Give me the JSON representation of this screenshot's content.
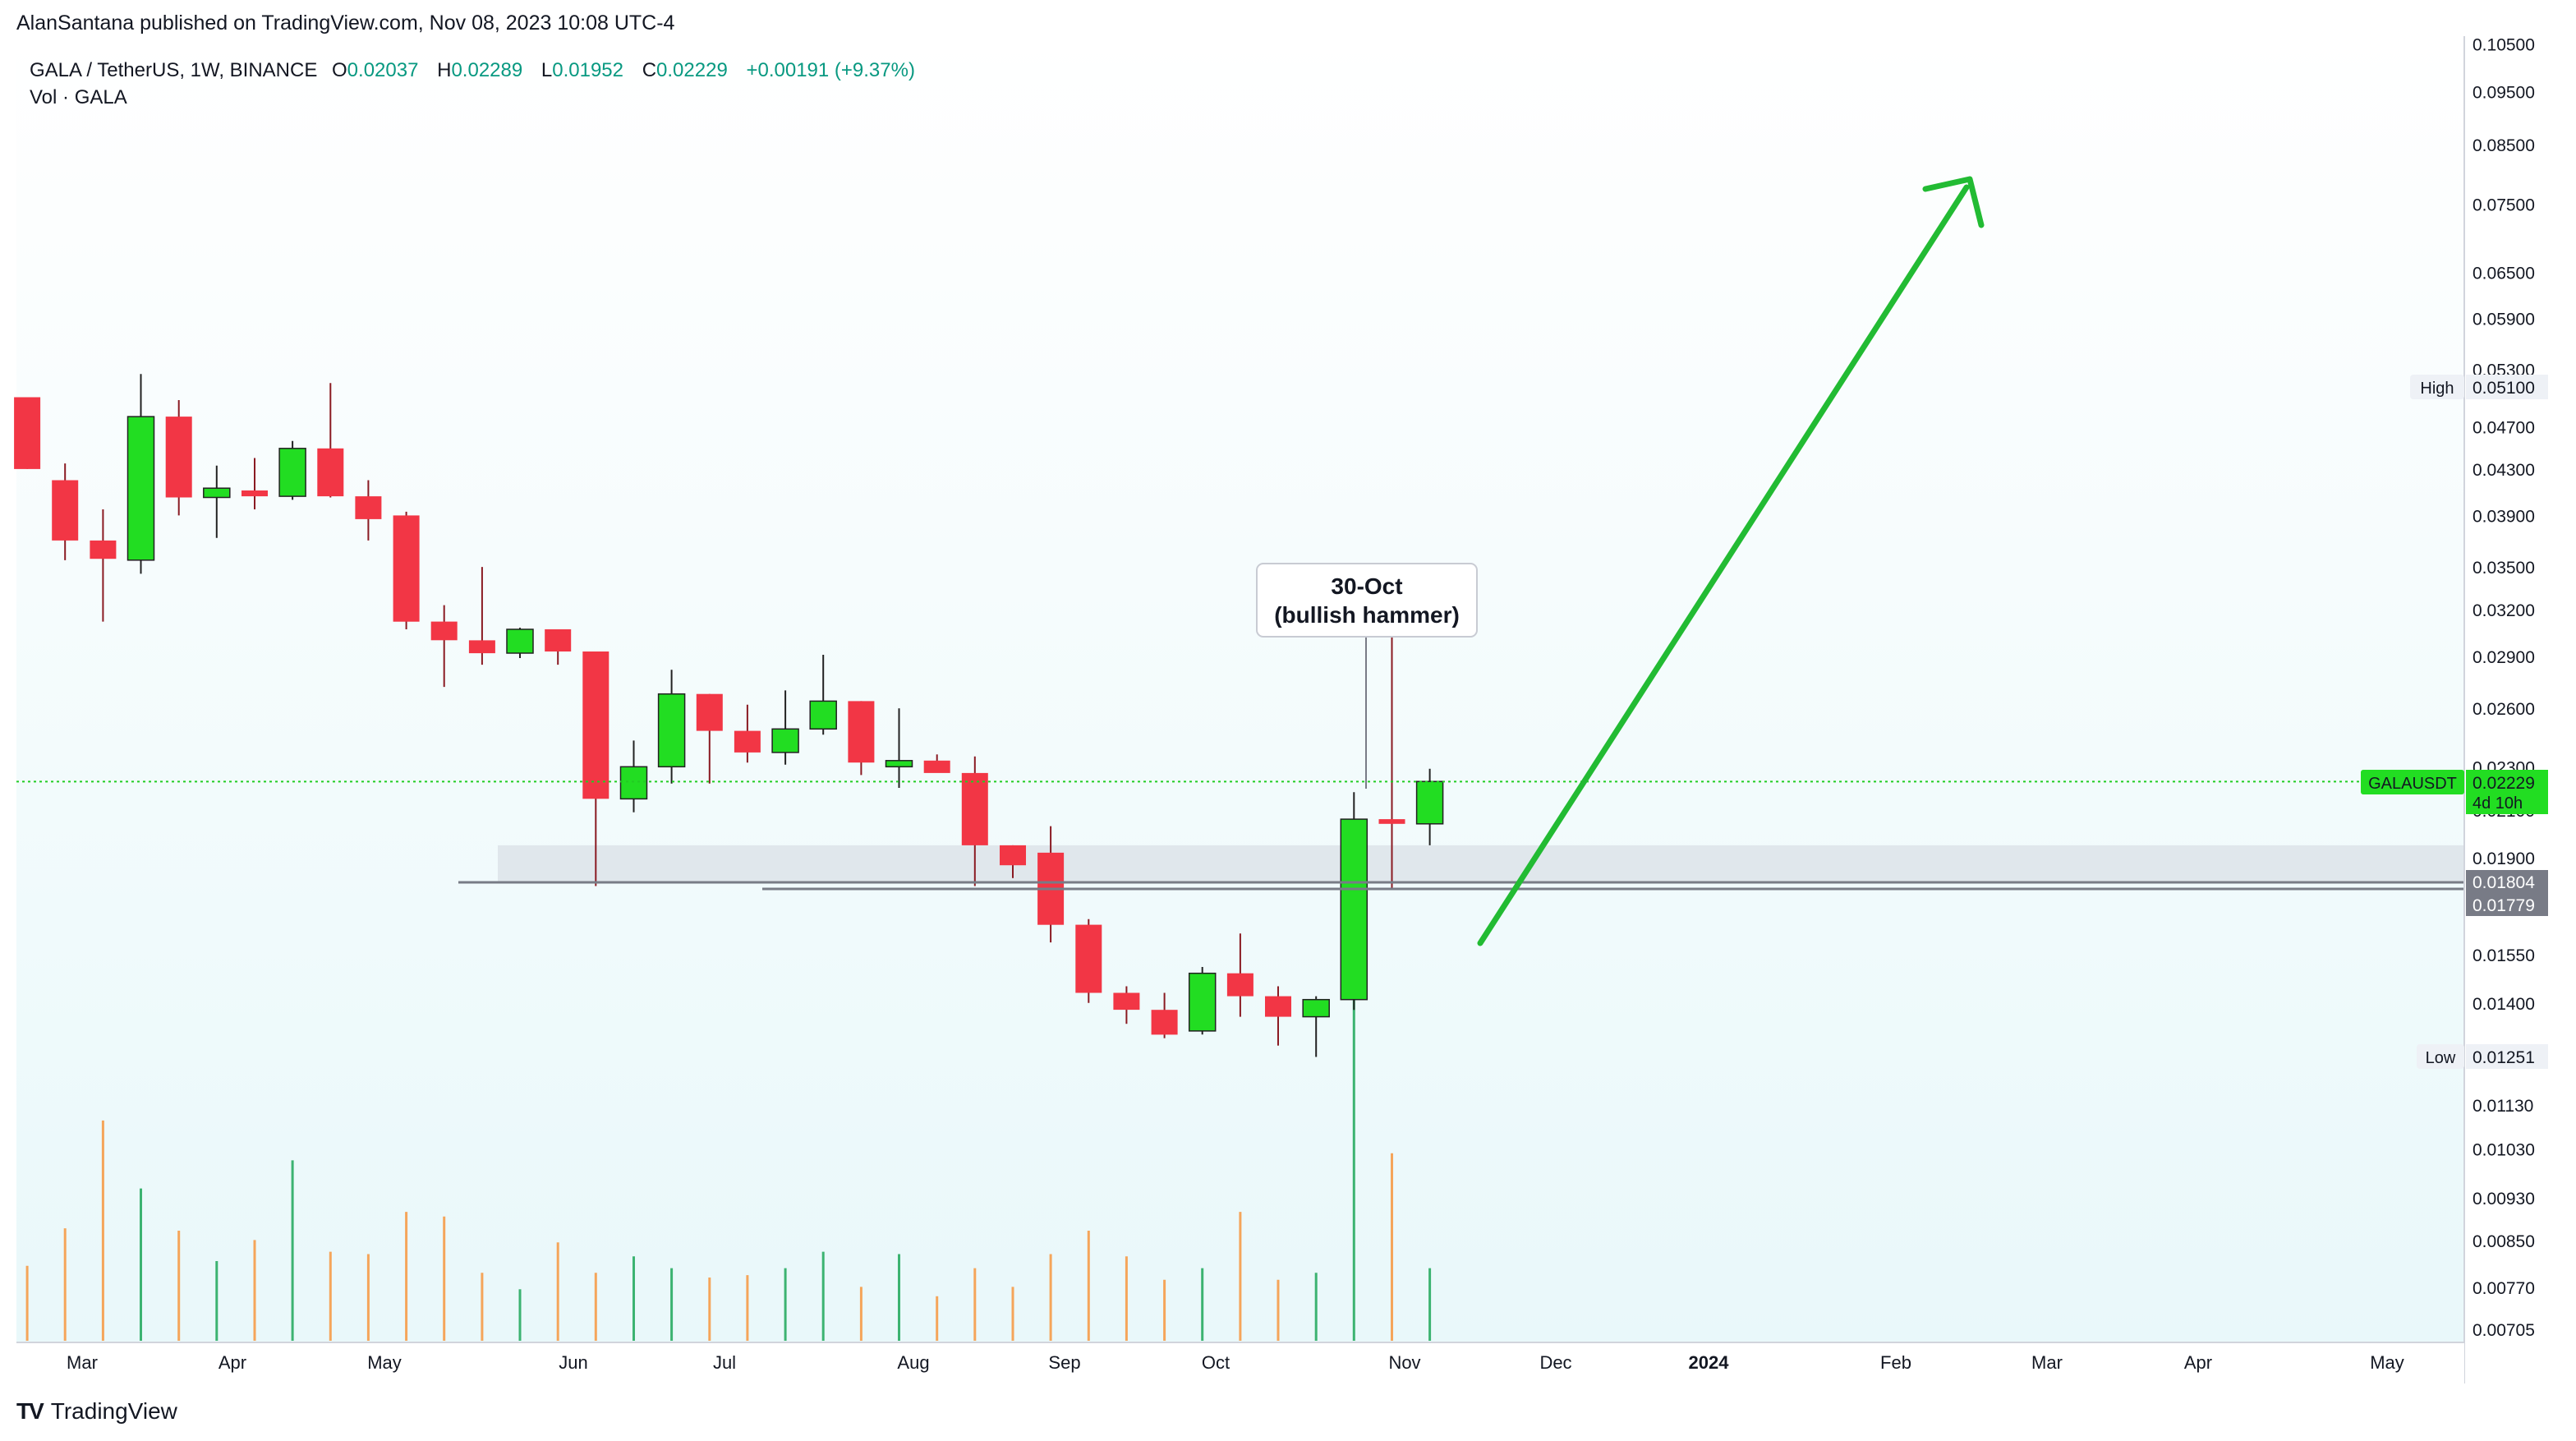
{
  "header": {
    "published_by": "AlanSantana published on TradingView.com, Nov 08, 2023 10:08 UTC-4"
  },
  "legend": {
    "symbol_line": "GALA / TetherUS, 1W, BINANCE",
    "o_label": "O",
    "o_value": "0.02037",
    "h_label": "H",
    "h_value": "0.02289",
    "l_label": "L",
    "l_value": "0.01952",
    "c_label": "C",
    "c_value": "0.02229",
    "change": "+0.00191 (+9.37%)",
    "volume_line": "Vol · GALA"
  },
  "annotation": {
    "line1": "30-Oct",
    "line2": "(bullish hammer)"
  },
  "price_axis": {
    "ticks": [
      "0.10500",
      "0.09500",
      "0.08500",
      "0.07500",
      "0.06500",
      "0.05900",
      "0.05300",
      "0.04700",
      "0.04300",
      "0.03900",
      "0.03500",
      "0.03200",
      "0.02900",
      "0.02600",
      "0.02300",
      "0.02100",
      "0.01900",
      "0.01550",
      "0.01400",
      "0.01130",
      "0.01030",
      "0.00930",
      "0.00850",
      "0.00770",
      "0.00705"
    ],
    "high_label": "High",
    "high_value": "0.05100",
    "low_label": "Low",
    "low_value": "0.01251",
    "level_1": "0.01804",
    "level_2": "0.01779",
    "symbol_tag": "GALAUSDT",
    "last_price": "0.02229",
    "countdown": "4d 10h"
  },
  "time_axis": {
    "labels": [
      "Mar",
      "Apr",
      "May",
      "Jun",
      "Jul",
      "Aug",
      "Sep",
      "Oct",
      "Nov",
      "Dec",
      "2024",
      "Feb",
      "Mar",
      "Apr",
      "May"
    ]
  },
  "branding": {
    "logo_text": "TradingView"
  },
  "colors": {
    "up": "#22dd22",
    "down": "#f23645",
    "arrow": "#22bb33",
    "vol_up": "#3cb371",
    "vol_down": "#f5a55a"
  },
  "chart_data": {
    "type": "candlestick",
    "title": "GALA / TetherUS, 1W, BINANCE",
    "scale": "log",
    "ylim": [
      0.00705,
      0.105
    ],
    "candles": [
      {
        "o": 0.05,
        "h": 0.05,
        "l": 0.043,
        "c": 0.043
      },
      {
        "o": 0.042,
        "h": 0.0435,
        "l": 0.0355,
        "c": 0.037
      },
      {
        "o": 0.037,
        "h": 0.0395,
        "l": 0.0312,
        "c": 0.0356
      },
      {
        "o": 0.0355,
        "h": 0.0525,
        "l": 0.0345,
        "c": 0.048
      },
      {
        "o": 0.048,
        "h": 0.0497,
        "l": 0.039,
        "c": 0.0405
      },
      {
        "o": 0.0405,
        "h": 0.0433,
        "l": 0.0372,
        "c": 0.0413
      },
      {
        "o": 0.0411,
        "h": 0.044,
        "l": 0.0395,
        "c": 0.0406
      },
      {
        "o": 0.0406,
        "h": 0.0456,
        "l": 0.0403,
        "c": 0.0449
      },
      {
        "o": 0.0449,
        "h": 0.0515,
        "l": 0.0405,
        "c": 0.0406
      },
      {
        "o": 0.0406,
        "h": 0.042,
        "l": 0.037,
        "c": 0.0387
      },
      {
        "o": 0.039,
        "h": 0.0393,
        "l": 0.0307,
        "c": 0.0312
      },
      {
        "o": 0.0312,
        "h": 0.0323,
        "l": 0.0272,
        "c": 0.03
      },
      {
        "o": 0.03,
        "h": 0.035,
        "l": 0.0285,
        "c": 0.0292
      },
      {
        "o": 0.0292,
        "h": 0.0308,
        "l": 0.0289,
        "c": 0.0307
      },
      {
        "o": 0.0307,
        "h": 0.0307,
        "l": 0.0285,
        "c": 0.0293
      },
      {
        "o": 0.0293,
        "h": 0.0293,
        "l": 0.0179,
        "c": 0.0215
      },
      {
        "o": 0.0215,
        "h": 0.0243,
        "l": 0.0209,
        "c": 0.023
      },
      {
        "o": 0.023,
        "h": 0.0282,
        "l": 0.0222,
        "c": 0.0268
      },
      {
        "o": 0.0268,
        "h": 0.0268,
        "l": 0.0222,
        "c": 0.0248
      },
      {
        "o": 0.0248,
        "h": 0.0262,
        "l": 0.0232,
        "c": 0.0237
      },
      {
        "o": 0.0237,
        "h": 0.027,
        "l": 0.0231,
        "c": 0.0249
      },
      {
        "o": 0.0249,
        "h": 0.0291,
        "l": 0.0246,
        "c": 0.0264
      },
      {
        "o": 0.0264,
        "h": 0.0264,
        "l": 0.0226,
        "c": 0.0232
      },
      {
        "o": 0.023,
        "h": 0.026,
        "l": 0.022,
        "c": 0.0233
      },
      {
        "o": 0.0233,
        "h": 0.0236,
        "l": 0.0228,
        "c": 0.0227
      },
      {
        "o": 0.0227,
        "h": 0.0235,
        "l": 0.0179,
        "c": 0.0195
      },
      {
        "o": 0.0195,
        "h": 0.0195,
        "l": 0.0182,
        "c": 0.0187
      },
      {
        "o": 0.0192,
        "h": 0.0203,
        "l": 0.0159,
        "c": 0.0165
      },
      {
        "o": 0.0165,
        "h": 0.0167,
        "l": 0.014,
        "c": 0.0143
      },
      {
        "o": 0.0143,
        "h": 0.0145,
        "l": 0.0134,
        "c": 0.0138
      },
      {
        "o": 0.0138,
        "h": 0.0143,
        "l": 0.013,
        "c": 0.0131
      },
      {
        "o": 0.0132,
        "h": 0.0151,
        "l": 0.0131,
        "c": 0.0149
      },
      {
        "o": 0.0149,
        "h": 0.0162,
        "l": 0.0136,
        "c": 0.0142
      },
      {
        "o": 0.0142,
        "h": 0.0145,
        "l": 0.0128,
        "c": 0.0136
      },
      {
        "o": 0.0136,
        "h": 0.0142,
        "l": 0.0125,
        "c": 0.0141
      },
      {
        "o": 0.0141,
        "h": 0.0218,
        "l": 0.0138,
        "c": 0.0206
      },
      {
        "o": 0.0206,
        "h": 0.0302,
        "l": 0.0178,
        "c": 0.0204
      },
      {
        "o": 0.0204,
        "h": 0.0229,
        "l": 0.0195,
        "c": 0.0223
      }
    ],
    "volume": [
      0.32,
      0.48,
      0.94,
      0.65,
      0.47,
      0.34,
      0.43,
      0.77,
      0.38,
      0.37,
      0.55,
      0.53,
      0.29,
      0.22,
      0.42,
      0.29,
      0.36,
      0.31,
      0.27,
      0.28,
      0.31,
      0.38,
      0.23,
      0.37,
      0.19,
      0.31,
      0.23,
      0.37,
      0.47,
      0.36,
      0.26,
      0.31,
      0.55,
      0.26,
      0.29,
      1.5,
      0.8,
      0.31
    ],
    "levels": [
      0.01804,
      0.01779
    ],
    "zone": [
      0.01804,
      0.0195
    ]
  }
}
